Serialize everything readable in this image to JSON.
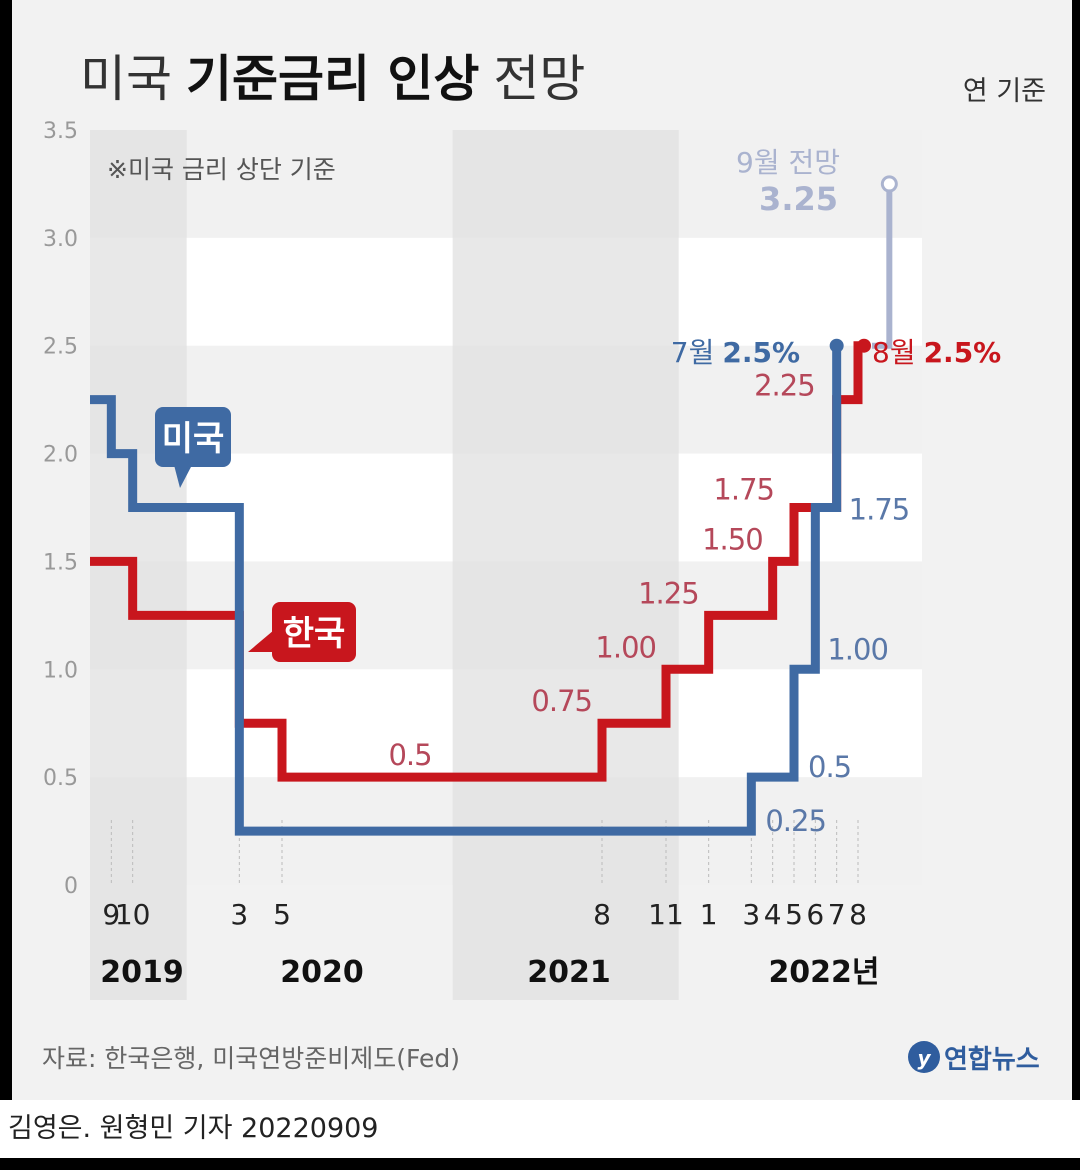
{
  "title": {
    "normal_1": "미국",
    "bold": "기준금리 인상",
    "normal_2": "전망"
  },
  "unit_label": "연 기준",
  "note": "※미국 금리 상단 기준",
  "source": "자료: 한국은행, 미국연방준비제도(Fed)",
  "logo": "연합뉴스",
  "credit": "김영은. 원형민 기자 20220909",
  "colors": {
    "us": "#3f6aa3",
    "korea": "#c8161d",
    "forecast": "#aab3cf",
    "korea_label": "#b5485a",
    "us_label": "#5a78a8"
  },
  "chart_data": {
    "type": "line",
    "step": true,
    "ylim": [
      0,
      3.5
    ],
    "y_ticks": [
      "0",
      "0.5",
      "1.0",
      "1.5",
      "2.0",
      "2.5",
      "3.0",
      "3.5"
    ],
    "x_month_ticks": [
      "9",
      "10",
      "3",
      "5",
      "8",
      "11",
      "1",
      "3",
      "4",
      "5",
      "6",
      "7",
      "8"
    ],
    "year_labels": [
      "2019",
      "2020",
      "2021",
      "2022년"
    ],
    "series": [
      {
        "name": "미국",
        "values": [
          {
            "date": "2019-08",
            "value": 2.25
          },
          {
            "date": "2019-09",
            "value": 2.0
          },
          {
            "date": "2019-10",
            "value": 1.75
          },
          {
            "date": "2020-03",
            "value": 1.25
          },
          {
            "date": "2020-03",
            "value": 0.25
          },
          {
            "date": "2022-03",
            "value": 0.5
          },
          {
            "date": "2022-05",
            "value": 1.0
          },
          {
            "date": "2022-06",
            "value": 1.75
          },
          {
            "date": "2022-07",
            "value": 2.5
          }
        ]
      },
      {
        "name": "한국",
        "values": [
          {
            "date": "2019-08",
            "value": 1.5
          },
          {
            "date": "2019-10",
            "value": 1.25
          },
          {
            "date": "2020-03",
            "value": 0.75
          },
          {
            "date": "2020-05",
            "value": 0.5
          },
          {
            "date": "2021-08",
            "value": 0.75
          },
          {
            "date": "2021-11",
            "value": 1.0
          },
          {
            "date": "2022-01",
            "value": 1.25
          },
          {
            "date": "2022-04",
            "value": 1.5
          },
          {
            "date": "2022-05",
            "value": 1.75
          },
          {
            "date": "2022-07",
            "value": 2.25
          },
          {
            "date": "2022-08",
            "value": 2.5
          }
        ]
      },
      {
        "name": "9월 전망",
        "values": [
          {
            "date": "2022-09",
            "value": 2.5
          },
          {
            "date": "2022-09",
            "value": 3.25
          }
        ]
      }
    ],
    "value_labels": {
      "korea": [
        "0.5",
        "0.75",
        "1.00",
        "1.25",
        "1.50",
        "1.75",
        "2.25"
      ],
      "us": [
        "0.25",
        "0.5",
        "1.00",
        "1.75"
      ]
    },
    "callouts": {
      "us_month": "7월",
      "us_value": "2.5%",
      "korea_month": "8월",
      "korea_value": "2.5%",
      "forecast_label": "9월 전망",
      "forecast_value": "3.25"
    }
  }
}
